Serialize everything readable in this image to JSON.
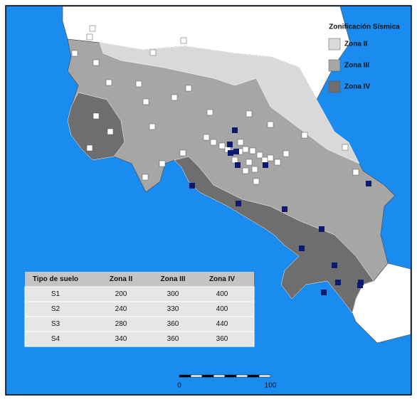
{
  "legend": {
    "title": "Zonificación Sísmica",
    "items": [
      {
        "label": "Zona II",
        "color": "#d9d9d9"
      },
      {
        "label": "Zona III",
        "color": "#a6a6a6"
      },
      {
        "label": "Zona IV",
        "color": "#6e6e6e"
      }
    ]
  },
  "table": {
    "header": [
      "Tipo de suelo",
      "Zona II",
      "Zona III",
      "Zona IV"
    ],
    "rows": [
      [
        "S1",
        "200",
        "300",
        "400"
      ],
      [
        "S2",
        "240",
        "330",
        "400"
      ],
      [
        "S3",
        "280",
        "360",
        "440"
      ],
      [
        "S4",
        "340",
        "360",
        "360"
      ]
    ]
  },
  "scale_bar": {
    "labels": [
      "0",
      "100"
    ]
  }
}
